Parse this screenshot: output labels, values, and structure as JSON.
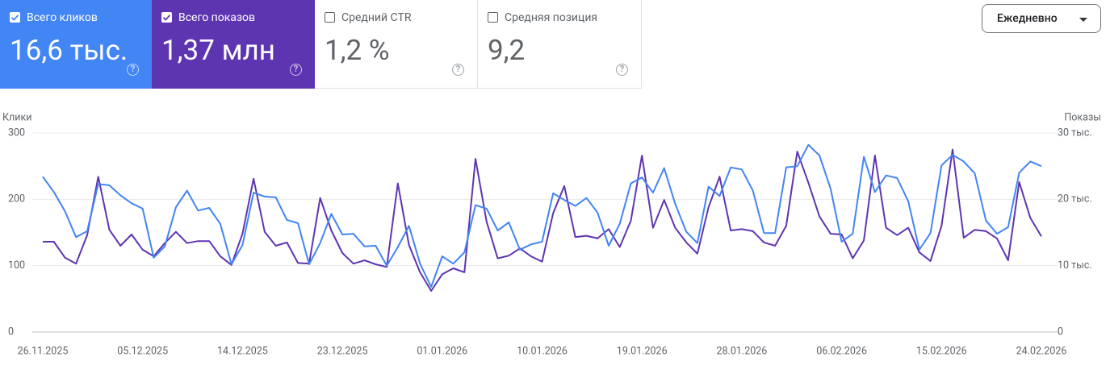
{
  "metrics": [
    {
      "label": "Всего кликов",
      "value": "16,6 тыс.",
      "selected": true,
      "color": "#4285f4"
    },
    {
      "label": "Всего показов",
      "value": "1,37 млн",
      "selected": true,
      "color": "#5e35b1"
    },
    {
      "label": "Средний CTR",
      "value": "1,2 %",
      "selected": false,
      "color": "#ffffff"
    },
    {
      "label": "Средняя позиция",
      "value": "9,2",
      "selected": false,
      "color": "#ffffff"
    }
  ],
  "period_select": "Ежедневно",
  "chart_data": {
    "type": "line",
    "y_label": "Клики",
    "y2_label": "Показы",
    "x": [
      "26.11.2025",
      "27.11.2025",
      "28.11.2025",
      "29.11.2025",
      "30.11.2025",
      "01.12.2025",
      "02.12.2025",
      "03.12.2025",
      "04.12.2025",
      "05.12.2025",
      "06.12.2025",
      "07.12.2025",
      "08.12.2025",
      "09.12.2025",
      "10.12.2025",
      "11.12.2025",
      "12.12.2025",
      "13.12.2025",
      "14.12.2025",
      "15.12.2025",
      "16.12.2025",
      "17.12.2025",
      "18.12.2025",
      "19.12.2025",
      "20.12.2025",
      "21.12.2025",
      "22.12.2025",
      "23.12.2025",
      "24.12.2025",
      "25.12.2025",
      "26.12.2025",
      "27.12.2025",
      "28.12.2025",
      "29.12.2025",
      "30.12.2025",
      "31.12.2025",
      "01.01.2026",
      "02.01.2026",
      "03.01.2026",
      "04.01.2026",
      "05.01.2026",
      "06.01.2026",
      "07.01.2026",
      "08.01.2026",
      "09.01.2026",
      "10.01.2026",
      "11.01.2026",
      "12.01.2026",
      "13.01.2026",
      "14.01.2026",
      "15.01.2026",
      "16.01.2026",
      "17.01.2026",
      "18.01.2026",
      "19.01.2026",
      "20.01.2026",
      "21.01.2026",
      "22.01.2026",
      "23.01.2026",
      "24.01.2026",
      "25.01.2026",
      "26.01.2026",
      "27.01.2026",
      "28.01.2026",
      "29.01.2026",
      "30.01.2026",
      "31.01.2026",
      "01.02.2026",
      "02.02.2026",
      "03.02.2026",
      "04.02.2026",
      "05.02.2026",
      "06.02.2026",
      "07.02.2026",
      "08.02.2026",
      "09.02.2026",
      "10.02.2026",
      "11.02.2026",
      "12.02.2026",
      "13.02.2026",
      "14.02.2026",
      "15.02.2026",
      "16.02.2026",
      "17.02.2026",
      "18.02.2026",
      "19.02.2026",
      "20.02.2026",
      "21.02.2026",
      "22.02.2026",
      "23.02.2026",
      "24.02.2026"
    ],
    "xtick_every": 9,
    "series": [
      {
        "name": "Всего кликов",
        "color": "#4285f4",
        "axis": "y",
        "values": [
          234,
          211,
          182,
          143,
          152,
          223,
          221,
          206,
          194,
          186,
          112,
          129,
          188,
          213,
          183,
          187,
          163,
          102,
          131,
          210,
          204,
          203,
          169,
          164,
          102,
          134,
          178,
          147,
          148,
          129,
          130,
          100,
          128,
          160,
          103,
          68,
          114,
          103,
          120,
          191,
          186,
          153,
          165,
          124,
          132,
          136,
          209,
          199,
          190,
          202,
          180,
          130,
          163,
          224,
          233,
          210,
          247,
          193,
          151,
          134,
          219,
          205,
          248,
          245,
          213,
          149,
          149,
          248,
          250,
          282,
          266,
          216,
          136,
          148,
          264,
          211,
          236,
          232,
          197,
          124,
          149,
          251,
          267,
          257,
          239,
          168,
          148,
          158,
          240,
          257,
          250
        ]
      },
      {
        "name": "Всего показов",
        "color": "#5e35b1",
        "axis": "y2",
        "values": [
          13600,
          13600,
          11200,
          10300,
          14600,
          23400,
          15400,
          13000,
          14700,
          12400,
          11400,
          13400,
          15100,
          13400,
          13700,
          13700,
          11400,
          10100,
          14800,
          23100,
          15100,
          13000,
          13500,
          10400,
          10300,
          20200,
          15300,
          11900,
          10300,
          10800,
          10200,
          9800,
          22400,
          13100,
          9000,
          6200,
          8700,
          9600,
          9000,
          26100,
          16600,
          11100,
          11500,
          12600,
          11400,
          10600,
          17900,
          22000,
          14300,
          14500,
          14100,
          15500,
          12800,
          16800,
          26600,
          15700,
          19900,
          15700,
          13500,
          11800,
          18800,
          23400,
          15300,
          15500,
          15200,
          13500,
          13000,
          16000,
          27200,
          22500,
          17400,
          14800,
          14700,
          11100,
          13800,
          26600,
          15700,
          14600,
          15700,
          12000,
          10700,
          16000,
          27500,
          14200,
          15400,
          15200,
          14100,
          10800,
          22600,
          17200,
          14400
        ]
      }
    ],
    "ylim": [
      0,
      300
    ],
    "yticks": [
      0,
      100,
      200,
      300
    ],
    "y2lim": [
      0,
      30000
    ],
    "y2ticks": [
      0,
      {
        "value": 10000,
        "label": "10 тыс."
      },
      {
        "value": 20000,
        "label": "20 тыс."
      },
      {
        "value": 30000,
        "label": "30 тыс."
      }
    ],
    "grid": true
  }
}
